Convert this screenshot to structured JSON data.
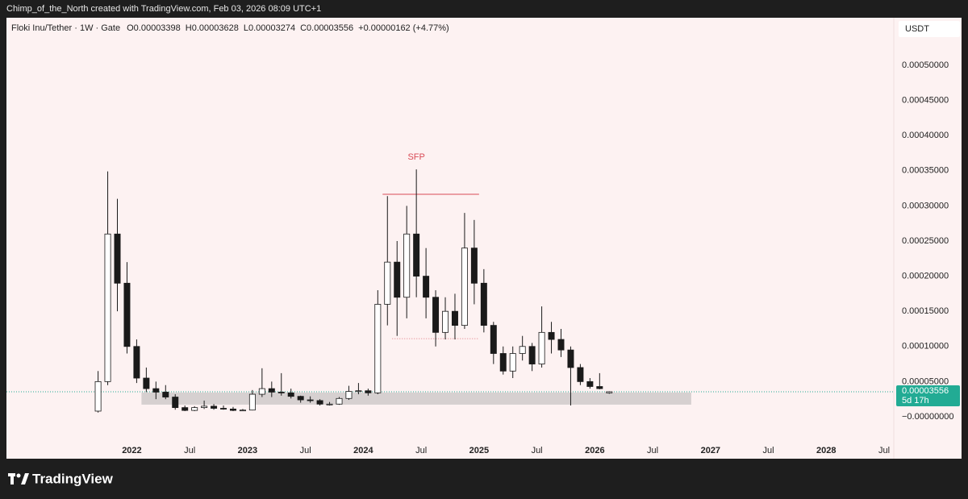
{
  "header": {
    "attribution": "Chimp_of_the_North created with TradingView.com, Feb 03, 2026 08:09 UTC+1",
    "symbol": "Floki Inu/Tether · 1W · Gate",
    "ohlc": [
      "O0.00003398",
      "H0.00003628",
      "L0.00003274",
      "C0.00003556"
    ],
    "change": "+0.00000162 (+4.77%)",
    "currency": "USDT"
  },
  "footer": {
    "brand": "TradingView"
  },
  "chart_data": {
    "type": "candlestick",
    "x": [
      "2021-09",
      "2021-10",
      "2021-11",
      "2021-12",
      "2022-01",
      "2022-02",
      "2022-03",
      "2022-04",
      "2022-05",
      "2022-06",
      "2022-07",
      "2022-08",
      "2022-09",
      "2022-10",
      "2022-11",
      "2022-12",
      "2023-01",
      "2023-02",
      "2023-03",
      "2023-04",
      "2023-05",
      "2023-06",
      "2023-07",
      "2023-08",
      "2023-09",
      "2023-10",
      "2023-11",
      "2023-12",
      "2024-01",
      "2024-02",
      "2024-03",
      "2024-04",
      "2024-05",
      "2024-06",
      "2024-07",
      "2024-08",
      "2024-09",
      "2024-10",
      "2024-11",
      "2024-12",
      "2025-01",
      "2025-02",
      "2025-03",
      "2025-04",
      "2025-05",
      "2025-06",
      "2025-07",
      "2025-08",
      "2025-09",
      "2025-10",
      "2025-11",
      "2025-12",
      "2026-01",
      "2026-02"
    ],
    "series": [
      {
        "name": "Floki Inu/Tether",
        "up_color": "#ffffff",
        "down_color": "#1a1a1a",
        "border_color": "#1a1a1a",
        "open": [
          8e-06,
          5e-05,
          0.00026,
          0.00019,
          0.0001,
          5.5e-05,
          4e-05,
          3.5e-05,
          2.8e-05,
          1.3e-05,
          9e-06,
          1.3e-05,
          1.5e-05,
          1.2e-05,
          1.1e-05,
          9e-06,
          9.5e-06,
          3.2e-05,
          4e-05,
          3.5e-05,
          3.4e-05,
          2.9e-05,
          2.4e-05,
          2.3e-05,
          1.8e-05,
          1.8e-05,
          2.6e-05,
          3.6e-05,
          3.7e-05,
          3.4e-05,
          0.00016,
          0.00022,
          0.00017,
          0.00026,
          0.0002,
          0.00017,
          0.00012,
          0.00015,
          0.00013,
          0.00024,
          0.00019,
          0.00013,
          9e-05,
          6.5e-05,
          9e-05,
          0.0001,
          7.5e-05,
          0.00012,
          0.00011,
          9.5e-05,
          7e-05,
          5e-05,
          4.3e-05,
          3.398e-05
        ],
        "high": [
          6.5e-05,
          0.000349,
          0.00031,
          0.00022,
          0.00011,
          7e-05,
          5e-05,
          4.5e-05,
          3.2e-05,
          1.6e-05,
          1.5e-05,
          2.3e-05,
          1.8e-05,
          1.6e-05,
          1.4e-05,
          1.1e-05,
          3.8e-05,
          6.9e-05,
          5e-05,
          6.2e-05,
          4e-05,
          3e-05,
          2.9e-05,
          2.5e-05,
          2.1e-05,
          2.8e-05,
          4.4e-05,
          4.8e-05,
          4e-05,
          0.00018,
          0.000314,
          0.00025,
          0.0003,
          0.000352,
          0.00024,
          0.00018,
          0.00017,
          0.000175,
          0.00029,
          0.00028,
          0.00021,
          0.000135,
          0.0001,
          0.0001,
          0.000115,
          0.000105,
          0.000157,
          0.000135,
          0.000125,
          0.0001,
          7.5e-05,
          5.5e-05,
          6.2e-05,
          3.628e-05
        ],
        "low": [
          6e-06,
          4.5e-05,
          0.00015,
          9e-05,
          4.8e-05,
          3.5e-05,
          2.5e-05,
          2.5e-05,
          1e-05,
          8e-06,
          8e-06,
          1.1e-05,
          1e-05,
          1e-05,
          8e-06,
          8e-06,
          9e-06,
          2.8e-05,
          2.8e-05,
          3e-05,
          2.6e-05,
          2e-05,
          2e-05,
          1.6e-05,
          1.6e-05,
          1.7e-05,
          2.4e-05,
          3.2e-05,
          3e-05,
          3.2e-05,
          0.00013,
          0.000115,
          0.00014,
          0.00017,
          0.00014,
          0.0001,
          0.00011,
          0.00011,
          0.000125,
          0.00016,
          0.00012,
          7.5e-05,
          6e-05,
          5.5e-05,
          8e-05,
          6.5e-05,
          7e-05,
          9e-05,
          8.5e-05,
          1.6e-05,
          4.5e-05,
          4e-05,
          3.9e-05,
          3.274e-05
        ],
        "close": [
          5e-05,
          0.00026,
          0.00019,
          0.0001,
          5.5e-05,
          4e-05,
          3.5e-05,
          2.8e-05,
          1.3e-05,
          9e-06,
          1.3e-05,
          1.5e-05,
          1.2e-05,
          1.1e-05,
          9e-06,
          9.5e-06,
          3.2e-05,
          4e-05,
          3.5e-05,
          3.4e-05,
          2.9e-05,
          2.4e-05,
          2.3e-05,
          1.8e-05,
          1.8e-05,
          2.6e-05,
          3.6e-05,
          3.7e-05,
          3.4e-05,
          0.00016,
          0.00022,
          0.00017,
          0.00026,
          0.0002,
          0.00017,
          0.00012,
          0.00015,
          0.00013,
          0.00024,
          0.00019,
          0.00013,
          9e-05,
          6.5e-05,
          9e-05,
          0.0001,
          7.5e-05,
          0.00012,
          0.00011,
          9.5e-05,
          7e-05,
          5e-05,
          4.3e-05,
          4e-05,
          3.556e-05
        ]
      }
    ],
    "xlim": [
      "2020-12",
      "2028-08"
    ],
    "xticks": [
      {
        "value": "2022-01",
        "label": "2022"
      },
      {
        "value": "2022-07",
        "label": "Jul"
      },
      {
        "value": "2023-01",
        "label": "2023"
      },
      {
        "value": "2023-07",
        "label": "Jul"
      },
      {
        "value": "2024-01",
        "label": "2024"
      },
      {
        "value": "2024-07",
        "label": "Jul"
      },
      {
        "value": "2025-01",
        "label": "2025"
      },
      {
        "value": "2025-07",
        "label": "Jul"
      },
      {
        "value": "2026-01",
        "label": "2026"
      },
      {
        "value": "2026-07",
        "label": "Jul"
      },
      {
        "value": "2027-01",
        "label": "2027"
      },
      {
        "value": "2027-07",
        "label": "Jul"
      },
      {
        "value": "2028-01",
        "label": "2028"
      },
      {
        "value": "2028-07",
        "label": "Jul"
      }
    ],
    "ylim": [
      -3.56e-05,
      0.0005677
    ],
    "yticks": [
      {
        "value": 0.0005,
        "label": "0.00050000"
      },
      {
        "value": 0.00045,
        "label": "0.00045000"
      },
      {
        "value": 0.0004,
        "label": "0.00040000"
      },
      {
        "value": 0.00035,
        "label": "0.00035000"
      },
      {
        "value": 0.0003,
        "label": "0.00030000"
      },
      {
        "value": 0.00025,
        "label": "0.00025000"
      },
      {
        "value": 0.0002,
        "label": "0.00020000"
      },
      {
        "value": 0.00015,
        "label": "0.00015000"
      },
      {
        "value": 0.0001,
        "label": "0.00010000"
      },
      {
        "value": 5e-05,
        "label": "0.00005000"
      },
      {
        "value": 0,
        "label": "−0.00000000"
      }
    ],
    "grid": false,
    "last_price": {
      "value": 3.556e-05,
      "label": "0.00003556",
      "countdown": "5d 17h",
      "color": "#22ab94"
    },
    "drawings": {
      "zone": {
        "x": [
          "2022-02",
          "2026-11"
        ],
        "y": [
          1.72e-05,
          3.44e-05
        ],
        "color": "#d6d0d0"
      },
      "level": {
        "x": [
          "2024-03",
          "2025-01"
        ],
        "y": 0.0003165,
        "color": "#d94a55"
      },
      "dotted_level": {
        "x": [
          "2024-04",
          "2025-01"
        ],
        "y": 0.000111,
        "color": "#e07a80"
      },
      "marker": {
        "x": "2025-01",
        "y": 0.000166,
        "color": "#d94a55"
      },
      "label": {
        "text": "SFP",
        "x": "2024-06",
        "y": 0.000369,
        "color": "#d94a55"
      }
    }
  }
}
